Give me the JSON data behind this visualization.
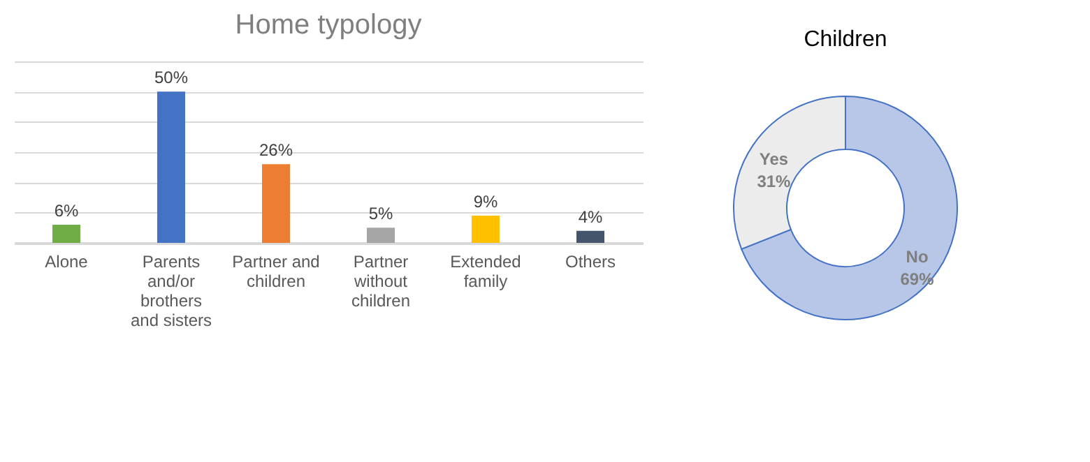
{
  "chart_data": [
    {
      "type": "bar",
      "title": "Home typology",
      "categories": [
        "Alone",
        "Parents and/or brothers and sisters",
        "Partner and children",
        "Partner without children",
        "Extended family",
        "Others"
      ],
      "values": [
        6,
        50,
        26,
        5,
        9,
        4
      ],
      "colors": [
        "#70ad47",
        "#4472c4",
        "#ed7d31",
        "#a5a5a5",
        "#ffc000",
        "#44546a"
      ],
      "value_labels": [
        "6%",
        "50%",
        "26%",
        "5%",
        "9%",
        "4%"
      ],
      "ylim": [
        0,
        60
      ],
      "grid": "y",
      "tick_labels": "x"
    },
    {
      "type": "donut",
      "title": "Children",
      "categories": [
        "No",
        "Yes"
      ],
      "values": [
        69,
        31
      ],
      "colors": [
        "#b8c7e8",
        "#ececec"
      ],
      "value_labels": [
        "69%",
        "31%"
      ]
    }
  ]
}
